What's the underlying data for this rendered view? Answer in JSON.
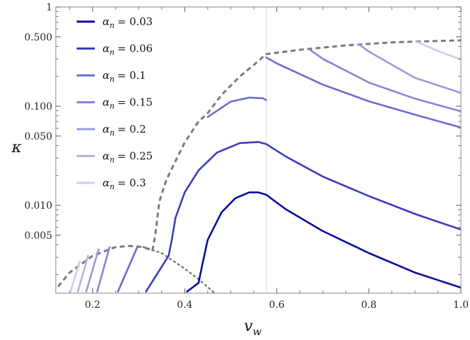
{
  "chart_data": {
    "type": "line",
    "xlabel": "v",
    "xlabel_sub": "w",
    "ylabel": "κ",
    "xlim": [
      0.12,
      1.0
    ],
    "ylim": [
      0.0013,
      1.0
    ],
    "yscale": "log",
    "grid": false,
    "legend_position": "top-left",
    "x_ticks": [
      {
        "value": 0.2,
        "label": "0.2"
      },
      {
        "value": 0.4,
        "label": "0.4"
      },
      {
        "value": 0.6,
        "label": "0.6"
      },
      {
        "value": 0.8,
        "label": "0.8"
      },
      {
        "value": 1.0,
        "label": "1.0"
      }
    ],
    "y_ticks": [
      {
        "value": 0.005,
        "label": "0.005"
      },
      {
        "value": 0.01,
        "label": "0.010"
      },
      {
        "value": 0.05,
        "label": "0.050"
      },
      {
        "value": 0.1,
        "label": "0.100"
      },
      {
        "value": 0.5,
        "label": "0.500"
      },
      {
        "value": 1.0,
        "label": "1"
      }
    ],
    "vertical_reference_x": 0.5774,
    "series": [
      {
        "name_prefix": "α",
        "name_sub": "n",
        "name_value": "= 0.03",
        "color": "#0a0aa0",
        "segments": [
          [
            [
              0.405,
              0.00135
            ],
            [
              0.43,
              0.00165
            ]
          ],
          [
            [
              0.43,
              0.00165
            ],
            [
              0.438,
              0.0025
            ],
            [
              0.45,
              0.0045
            ],
            [
              0.48,
              0.0085
            ],
            [
              0.51,
              0.0118
            ],
            [
              0.54,
              0.0135
            ],
            [
              0.56,
              0.0135
            ],
            [
              0.577,
              0.0128
            ]
          ],
          [
            [
              0.577,
              0.0128
            ],
            [
              0.62,
              0.0091
            ],
            [
              0.7,
              0.0055
            ],
            [
              0.8,
              0.0033
            ],
            [
              0.9,
              0.0021
            ],
            [
              1.0,
              0.00148
            ]
          ]
        ]
      },
      {
        "name_prefix": "α",
        "name_sub": "n",
        "name_value": "= 0.06",
        "color": "#3b3bbd",
        "segments": [
          [
            [
              0.316,
              0.00135
            ],
            [
              0.365,
              0.0031
            ]
          ],
          [
            [
              0.365,
              0.0031
            ],
            [
              0.372,
              0.0045
            ],
            [
              0.38,
              0.0075
            ],
            [
              0.4,
              0.0135
            ],
            [
              0.43,
              0.0225
            ],
            [
              0.47,
              0.034
            ],
            [
              0.52,
              0.0425
            ],
            [
              0.56,
              0.0435
            ],
            [
              0.577,
              0.0415
            ]
          ],
          [
            [
              0.577,
              0.0415
            ],
            [
              0.62,
              0.031
            ],
            [
              0.7,
              0.0195
            ],
            [
              0.8,
              0.0124
            ],
            [
              0.9,
              0.0082
            ],
            [
              1.0,
              0.0057
            ]
          ]
        ]
      },
      {
        "name_prefix": "α",
        "name_sub": "n",
        "name_value": "= 0.1",
        "color": "#6b6bcf",
        "segments": [
          [
            [
              0.255,
              0.00135
            ],
            [
              0.297,
              0.0038
            ]
          ],
          [
            [
              0.45,
              0.0778
            ],
            [
              0.5,
              0.111
            ],
            [
              0.54,
              0.122
            ],
            [
              0.57,
              0.12
            ],
            [
              0.577,
              0.115
            ]
          ],
          [
            [
              0.577,
              0.31
            ],
            [
              0.6,
              0.27
            ],
            [
              0.7,
              0.165
            ],
            [
              0.8,
              0.112
            ],
            [
              0.9,
              0.082
            ],
            [
              1.0,
              0.061
            ]
          ]
        ]
      },
      {
        "name_prefix": "α",
        "name_sub": "n",
        "name_value": "= 0.15",
        "color": "#8585d6",
        "segments": [
          [
            [
              0.21,
              0.00135
            ],
            [
              0.237,
              0.0038
            ]
          ],
          [
            [
              0.672,
              0.371
            ],
            [
              0.7,
              0.3
            ],
            [
              0.8,
              0.173
            ],
            [
              0.9,
              0.119
            ],
            [
              1.0,
              0.0886
            ]
          ]
        ]
      },
      {
        "name_prefix": "α",
        "name_sub": "n",
        "name_value": "= 0.2",
        "color": "#9a9ade",
        "segments": [
          [
            [
              0.186,
              0.00135
            ],
            [
              0.213,
              0.0036
            ]
          ],
          [
            [
              0.778,
              0.423
            ],
            [
              0.8,
              0.355
            ],
            [
              0.9,
              0.193
            ],
            [
              1.0,
              0.136
            ]
          ]
        ]
      },
      {
        "name_prefix": "α",
        "name_sub": "n",
        "name_value": "= 0.25",
        "color": "#b2b2e4",
        "segments": [
          [
            [
              0.168,
              0.00135
            ],
            [
              0.19,
              0.0031
            ]
          ]
        ]
      },
      {
        "name_prefix": "α",
        "name_sub": "n",
        "name_value": "= 0.3",
        "color": "#cdcdee",
        "segments": [
          [
            [
              0.152,
              0.00135
            ],
            [
              0.172,
              0.0027
            ]
          ],
          [
            [
              0.905,
              0.444
            ],
            [
              0.95,
              0.36
            ],
            [
              1.0,
              0.295
            ]
          ]
        ]
      }
    ],
    "boundary_dashed": {
      "color": "#7a7a7a",
      "segments": [
        [
          [
            0.125,
            0.00152
          ],
          [
            0.15,
            0.0021
          ],
          [
            0.2,
            0.0031
          ],
          [
            0.25,
            0.0038
          ],
          [
            0.28,
            0.0039
          ],
          [
            0.31,
            0.0038
          ],
          [
            0.33,
            0.0035
          ]
        ],
        [
          [
            0.33,
            0.0035
          ],
          [
            0.336,
            0.005
          ],
          [
            0.345,
            0.011
          ],
          [
            0.36,
            0.018
          ],
          [
            0.38,
            0.028
          ],
          [
            0.4,
            0.043
          ],
          [
            0.43,
            0.07
          ],
          [
            0.45,
            0.085
          ],
          [
            0.48,
            0.13
          ],
          [
            0.52,
            0.2
          ],
          [
            0.55,
            0.26
          ],
          [
            0.577,
            0.335
          ],
          [
            0.65,
            0.37
          ],
          [
            0.75,
            0.41
          ],
          [
            0.85,
            0.44
          ],
          [
            0.95,
            0.455
          ],
          [
            1.0,
            0.46
          ]
        ]
      ]
    },
    "boundary_dotted": {
      "color": "#7a7a7a",
      "points": [
        [
          0.31,
          0.0038
        ],
        [
          0.35,
          0.0033
        ],
        [
          0.4,
          0.0023
        ],
        [
          0.43,
          0.0018
        ],
        [
          0.45,
          0.0015
        ],
        [
          0.465,
          0.0013
        ]
      ]
    }
  }
}
